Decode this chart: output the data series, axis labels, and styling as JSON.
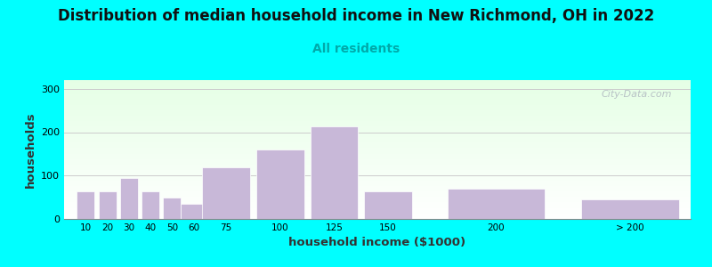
{
  "title": "Distribution of median household income in New Richmond, OH in 2022",
  "subtitle": "All residents",
  "xlabel": "household income ($1000)",
  "ylabel": "households",
  "background_color": "#00FFFF",
  "bar_color": "#c8b8d8",
  "title_fontsize": 12,
  "subtitle_fontsize": 10,
  "values": [
    63,
    63,
    95,
    63,
    50,
    35,
    118,
    160,
    213,
    63,
    70,
    45
  ],
  "bar_centers": [
    10,
    20,
    30,
    40,
    50,
    60,
    75,
    100,
    125,
    150,
    200,
    262
  ],
  "bar_widths": [
    9,
    9,
    9,
    9,
    9,
    13,
    23,
    23,
    23,
    23,
    46,
    46
  ],
  "xtick_positions": [
    10,
    20,
    30,
    40,
    50,
    60,
    75,
    100,
    125,
    150,
    200,
    262
  ],
  "xtick_labels": [
    "10",
    "20",
    "30",
    "40",
    "50",
    "60",
    "75",
    "100",
    "125",
    "150",
    "200",
    "> 200"
  ],
  "ytick_positions": [
    0,
    100,
    200,
    300
  ],
  "ylim": [
    0,
    320
  ],
  "xlim": [
    0,
    290
  ],
  "watermark": "City-Data.com",
  "grid_color": "#cccccc",
  "subtitle_color": "#00AAAA",
  "title_color": "#111111",
  "axis_color": "#888888"
}
